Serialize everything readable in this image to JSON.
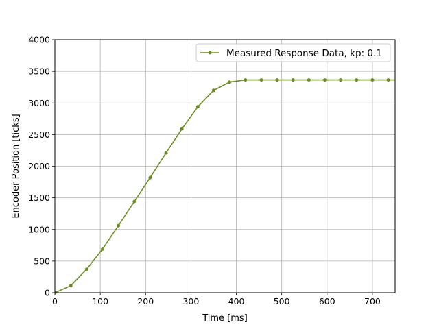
{
  "chart_data": {
    "type": "line",
    "xlabel": "Time [ms]",
    "ylabel": "Encoder Position [ticks]",
    "xlim": [
      0,
      750
    ],
    "ylim": [
      0,
      4000
    ],
    "xticks": [
      0,
      100,
      200,
      300,
      400,
      500,
      600,
      700
    ],
    "yticks": [
      0,
      500,
      1000,
      1500,
      2000,
      2500,
      3000,
      3500,
      4000
    ],
    "grid": true,
    "legend_position": "top-right",
    "series": [
      {
        "name": "Measured Response Data, kp: 0.1",
        "color": "#6b8e23",
        "marker": "circle",
        "x": [
          0,
          35,
          70,
          105,
          140,
          175,
          210,
          245,
          280,
          315,
          350,
          385,
          420,
          455,
          490,
          525,
          560,
          595,
          630,
          665,
          700,
          735,
          770
        ],
        "y": [
          0,
          110,
          370,
          690,
          1060,
          1440,
          1820,
          2210,
          2590,
          2940,
          3200,
          3330,
          3365,
          3365,
          3365,
          3365,
          3365,
          3365,
          3365,
          3365,
          3365,
          3365,
          3365
        ]
      }
    ]
  }
}
